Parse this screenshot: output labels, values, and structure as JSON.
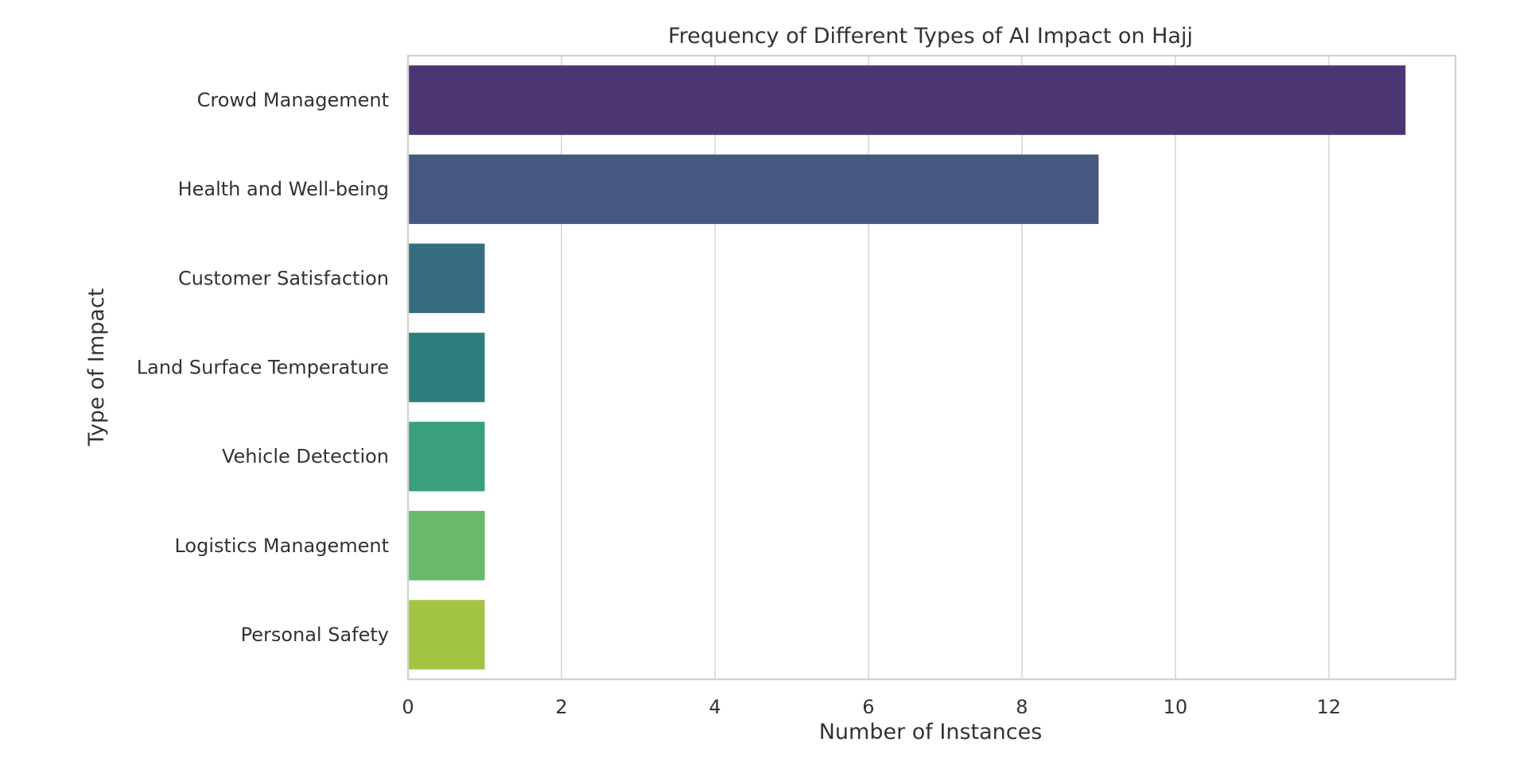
{
  "chart_data": {
    "type": "bar",
    "orientation": "horizontal",
    "title": "Frequency of Different Types of AI Impact on Hajj",
    "xlabel": "Number of Instances",
    "ylabel": "Type of Impact",
    "categories": [
      "Crowd Management",
      "Health and Well-being",
      "Customer Satisfaction",
      "Land Surface Temperature",
      "Vehicle Detection",
      "Logistics Management",
      "Personal Safety"
    ],
    "values": [
      13,
      9,
      1,
      1,
      1,
      1,
      1
    ],
    "colors": [
      "#4b3572",
      "#46587f",
      "#376c80",
      "#2e7e80",
      "#3a9f7e",
      "#69b96b",
      "#a2c442"
    ],
    "xlim": [
      0,
      13.65
    ],
    "xticks": [
      0,
      2,
      4,
      6,
      8,
      10,
      12
    ],
    "grid": "vertical",
    "legend": "none"
  }
}
